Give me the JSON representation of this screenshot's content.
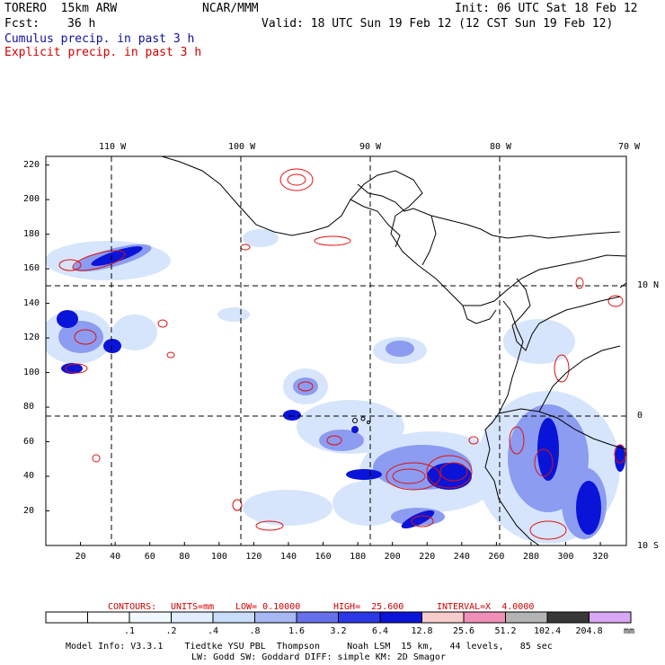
{
  "header": {
    "model": "TORERO  15km ARW",
    "org": "NCAR/MMM",
    "init": "Init: 06 UTC Sat 18 Feb 12",
    "fcst_label": "Fcst:",
    "fcst_value": "36 h",
    "valid": "Valid: 18 UTC Sun 19 Feb 12 (12 CST Sun 19 Feb 12)",
    "cumulus": "Cumulus precip. in past 3 h",
    "explicit": "Explicit precip. in past 3 h"
  },
  "axes": {
    "top_lon_labels": [
      "110 W",
      "100 W",
      "90 W",
      "80 W",
      "70 W"
    ],
    "right_lat_labels": [
      "10 N",
      "0",
      "10 S"
    ],
    "left_grid_labels": [
      "220",
      "200",
      "180",
      "160",
      "140",
      "120",
      "100",
      "80",
      "60",
      "40",
      "20"
    ],
    "bottom_grid_labels": [
      "20",
      "40",
      "60",
      "80",
      "100",
      "120",
      "140",
      "160",
      "180",
      "200",
      "220",
      "240",
      "260",
      "280",
      "300",
      "320"
    ]
  },
  "contours": {
    "label": "CONTOURS:",
    "units": "UNITS=mm",
    "low": "LOW= 0.10000",
    "high": "HIGH=  25.600",
    "interval": "INTERVAL=X  4.0000"
  },
  "colorbar": {
    "labels": [
      ".1",
      ".2",
      ".4",
      ".8",
      "1.6",
      "3.2",
      "6.4",
      "12.8",
      "25.6",
      "51.2",
      "102.4",
      "204.8"
    ],
    "unit": "mm",
    "colors": [
      "#ffffff",
      "#ffffff",
      "#f2f8ff",
      "#e0eeff",
      "#c8ddfa",
      "#a8b8f5",
      "#6670ea",
      "#2a38e6",
      "#0a14d8",
      "#f7cccc",
      "#f090b8",
      "#b4b4b4",
      "#383838",
      "#d8a8f4"
    ]
  },
  "footer": {
    "line1": "Model Info: V3.3.1    Tiedtke YSU PBL  Thompson     Noah LSM  15 km,   44 levels,   85 sec",
    "line2": "LW: Godd SW: Goddard DIFF: simple KM: 2D Smagor"
  }
}
